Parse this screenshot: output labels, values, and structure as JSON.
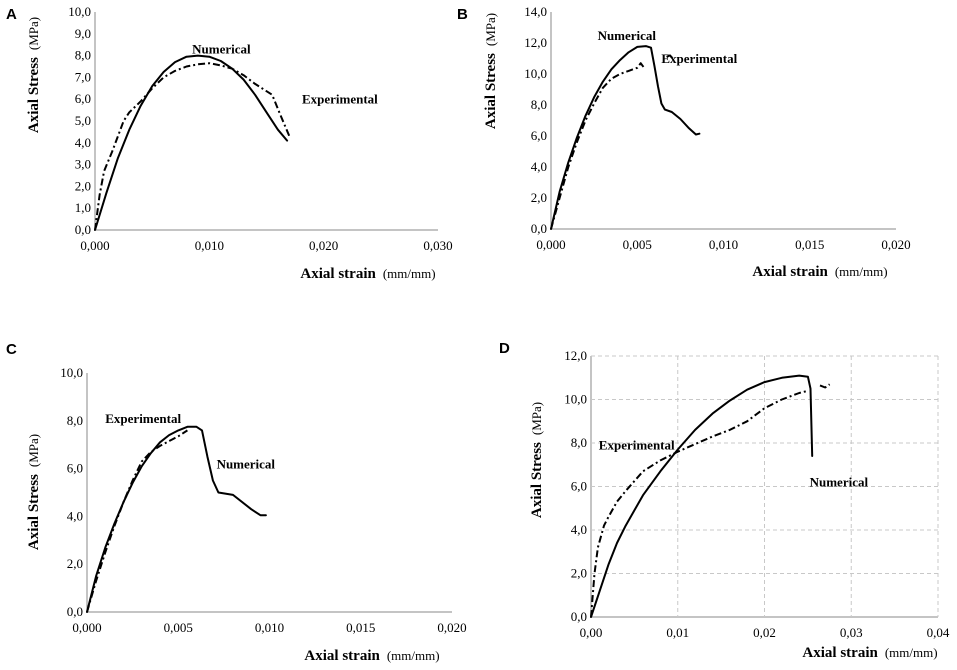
{
  "chart_data": [
    {
      "panel": "A",
      "type": "line",
      "xlabel": "Axial strain",
      "xlabel_unit": "(mm/mm)",
      "ylabel": "Axial Stress",
      "ylabel_unit": "(MPa)",
      "xlim": [
        0,
        0.03
      ],
      "ylim": [
        0,
        10
      ],
      "x_ticks": [
        0,
        0.01,
        0.02,
        0.03
      ],
      "x_tick_labels": [
        "0,000",
        "0,010",
        "0,020",
        "0,030"
      ],
      "y_ticks": [
        0,
        1,
        2,
        3,
        4,
        5,
        6,
        7,
        8,
        9,
        10
      ],
      "y_tick_labels": [
        "0,0",
        "1,0",
        "2,0",
        "3,0",
        "4,0",
        "5,0",
        "6,0",
        "7,0",
        "8,0",
        "9,0",
        "10,0"
      ],
      "grid": false,
      "series": [
        {
          "name": "Numerical",
          "style": "solid",
          "points": [
            [
              0,
              0
            ],
            [
              0.001,
              1.7
            ],
            [
              0.002,
              3.3
            ],
            [
              0.003,
              4.6
            ],
            [
              0.004,
              5.7
            ],
            [
              0.005,
              6.6
            ],
            [
              0.006,
              7.25
            ],
            [
              0.007,
              7.7
            ],
            [
              0.008,
              7.95
            ],
            [
              0.009,
              8.0
            ],
            [
              0.01,
              7.95
            ],
            [
              0.011,
              7.75
            ],
            [
              0.012,
              7.4
            ],
            [
              0.013,
              6.9
            ],
            [
              0.014,
              6.2
            ],
            [
              0.015,
              5.4
            ],
            [
              0.016,
              4.6
            ],
            [
              0.0168,
              4.1
            ]
          ]
        },
        {
          "name": "Experimental",
          "style": "dashdot",
          "points": [
            [
              0,
              0
            ],
            [
              0.0004,
              1.6
            ],
            [
              0.0008,
              2.7
            ],
            [
              0.0015,
              3.6
            ],
            [
              0.002,
              4.3
            ],
            [
              0.0025,
              5.0
            ],
            [
              0.003,
              5.4
            ],
            [
              0.004,
              5.9
            ],
            [
              0.005,
              6.5
            ],
            [
              0.006,
              7.0
            ],
            [
              0.007,
              7.3
            ],
            [
              0.008,
              7.5
            ],
            [
              0.009,
              7.6
            ],
            [
              0.01,
              7.65
            ],
            [
              0.011,
              7.55
            ],
            [
              0.012,
              7.4
            ],
            [
              0.013,
              7.1
            ],
            [
              0.014,
              6.7
            ],
            [
              0.0155,
              6.2
            ],
            [
              0.0162,
              5.3
            ],
            [
              0.017,
              4.3
            ]
          ]
        }
      ],
      "annotations": [
        {
          "text": "Numerical",
          "x": 0.0085,
          "y": 8.1
        },
        {
          "text": "Experimental",
          "x": 0.0181,
          "y": 5.8
        }
      ]
    },
    {
      "panel": "B",
      "type": "line",
      "xlabel": "Axial strain",
      "xlabel_unit": "(mm/mm)",
      "ylabel": "Axial Stress",
      "ylabel_unit": "(MPa)",
      "xlim": [
        0,
        0.02
      ],
      "ylim": [
        0,
        14
      ],
      "x_ticks": [
        0,
        0.005,
        0.01,
        0.015,
        0.02
      ],
      "x_tick_labels": [
        "0,000",
        "0,005",
        "0,010",
        "0,015",
        "0,020"
      ],
      "y_ticks": [
        0,
        2,
        4,
        6,
        8,
        10,
        12,
        14
      ],
      "y_tick_labels": [
        "0,0",
        "2,0",
        "4,0",
        "6,0",
        "8,0",
        "10,0",
        "12,0",
        "14,0"
      ],
      "grid": false,
      "series": [
        {
          "name": "Numerical",
          "style": "solid",
          "points": [
            [
              0,
              0
            ],
            [
              0.0005,
              2.4
            ],
            [
              0.001,
              4.3
            ],
            [
              0.0015,
              5.9
            ],
            [
              0.002,
              7.3
            ],
            [
              0.0025,
              8.5
            ],
            [
              0.003,
              9.5
            ],
            [
              0.0035,
              10.3
            ],
            [
              0.004,
              10.9
            ],
            [
              0.0045,
              11.4
            ],
            [
              0.005,
              11.75
            ],
            [
              0.0055,
              11.8
            ],
            [
              0.0058,
              11.7
            ],
            [
              0.006,
              10.5
            ],
            [
              0.0062,
              9.2
            ],
            [
              0.0064,
              8.1
            ],
            [
              0.0066,
              7.7
            ],
            [
              0.007,
              7.55
            ],
            [
              0.0075,
              7.1
            ],
            [
              0.008,
              6.5
            ],
            [
              0.0084,
              6.1
            ],
            [
              0.0086,
              6.15
            ]
          ]
        },
        {
          "name": "Experimental",
          "style": "dashdot",
          "points": [
            [
              0,
              0
            ],
            [
              0.0005,
              2.0
            ],
            [
              0.001,
              4.0
            ],
            [
              0.0015,
              5.6
            ],
            [
              0.002,
              7.0
            ],
            [
              0.0025,
              8.1
            ],
            [
              0.003,
              9.1
            ],
            [
              0.0035,
              9.7
            ],
            [
              0.004,
              10.0
            ],
            [
              0.0045,
              10.2
            ],
            [
              0.005,
              10.4
            ],
            [
              0.0052,
              10.7
            ],
            [
              0.0054,
              10.4
            ]
          ]
        },
        {
          "name": "Experimental",
          "style": "dashdot",
          "points": [
            [
              0.0067,
              11.1
            ],
            [
              0.0069,
              11.2
            ],
            [
              0.0071,
              10.95
            ]
          ]
        }
      ],
      "annotations": [
        {
          "text": "Numerical",
          "x": 0.0027,
          "y": 12.2
        },
        {
          "text": "Experimental",
          "x": 0.0064,
          "y": 10.7
        }
      ]
    },
    {
      "panel": "C",
      "type": "line",
      "xlabel": "Axial strain",
      "xlabel_unit": "(mm/mm)",
      "ylabel": "Axial Stress",
      "ylabel_unit": "(MPa)",
      "xlim": [
        0,
        0.02
      ],
      "ylim": [
        0,
        10
      ],
      "x_ticks": [
        0,
        0.005,
        0.01,
        0.015,
        0.02
      ],
      "x_tick_labels": [
        "0,000",
        "0,005",
        "0,010",
        "0,015",
        "0,020"
      ],
      "y_ticks": [
        0,
        2,
        4,
        6,
        8,
        10
      ],
      "y_tick_labels": [
        "0,0",
        "2,0",
        "4,0",
        "6,0",
        "8,0",
        "10,0"
      ],
      "grid": false,
      "series": [
        {
          "name": "Numerical",
          "style": "solid",
          "points": [
            [
              0,
              0
            ],
            [
              0.0005,
              1.5
            ],
            [
              0.001,
              2.7
            ],
            [
              0.0015,
              3.7
            ],
            [
              0.002,
              4.6
            ],
            [
              0.0025,
              5.4
            ],
            [
              0.003,
              6.1
            ],
            [
              0.0035,
              6.65
            ],
            [
              0.004,
              7.1
            ],
            [
              0.0045,
              7.4
            ],
            [
              0.005,
              7.6
            ],
            [
              0.0055,
              7.75
            ],
            [
              0.006,
              7.75
            ],
            [
              0.0063,
              7.6
            ],
            [
              0.0066,
              6.5
            ],
            [
              0.0069,
              5.5
            ],
            [
              0.0072,
              5.0
            ],
            [
              0.008,
              4.9
            ],
            [
              0.009,
              4.3
            ],
            [
              0.0095,
              4.05
            ],
            [
              0.0098,
              4.05
            ]
          ]
        },
        {
          "name": "Experimental",
          "style": "dashdot",
          "points": [
            [
              0,
              0
            ],
            [
              0.0005,
              1.3
            ],
            [
              0.001,
              2.5
            ],
            [
              0.0015,
              3.6
            ],
            [
              0.002,
              4.6
            ],
            [
              0.0025,
              5.5
            ],
            [
              0.003,
              6.3
            ],
            [
              0.0035,
              6.7
            ],
            [
              0.004,
              6.95
            ],
            [
              0.0045,
              7.15
            ],
            [
              0.005,
              7.35
            ],
            [
              0.0055,
              7.6
            ]
          ]
        }
      ],
      "annotations": [
        {
          "text": "Experimental",
          "x": 0.001,
          "y": 7.9
        },
        {
          "text": "Numerical",
          "x": 0.0071,
          "y": 6.0
        }
      ]
    },
    {
      "panel": "D",
      "type": "line",
      "xlabel": "Axial strain",
      "xlabel_unit": "(mm/mm)",
      "ylabel": "Axial Stress",
      "ylabel_unit": "(MPa)",
      "xlim": [
        0,
        0.04
      ],
      "ylim": [
        0,
        12
      ],
      "x_ticks": [
        0,
        0.01,
        0.02,
        0.03,
        0.04
      ],
      "x_tick_labels": [
        "0,00",
        "0,01",
        "0,02",
        "0,03",
        "0,04"
      ],
      "y_ticks": [
        0,
        2,
        4,
        6,
        8,
        10,
        12
      ],
      "y_tick_labels": [
        "0,0",
        "2,0",
        "4,0",
        "6,0",
        "8,0",
        "10,0",
        "12,0"
      ],
      "grid": true,
      "series": [
        {
          "name": "Numerical",
          "style": "solid",
          "points": [
            [
              0,
              0
            ],
            [
              0.001,
              1.2
            ],
            [
              0.002,
              2.4
            ],
            [
              0.003,
              3.4
            ],
            [
              0.004,
              4.2
            ],
            [
              0.006,
              5.6
            ],
            [
              0.008,
              6.7
            ],
            [
              0.01,
              7.7
            ],
            [
              0.012,
              8.6
            ],
            [
              0.014,
              9.35
            ],
            [
              0.016,
              9.95
            ],
            [
              0.018,
              10.45
            ],
            [
              0.02,
              10.8
            ],
            [
              0.022,
              11.0
            ],
            [
              0.024,
              11.1
            ],
            [
              0.025,
              11.05
            ],
            [
              0.0253,
              10.5
            ],
            [
              0.0255,
              7.4
            ]
          ]
        },
        {
          "name": "Experimental",
          "style": "dashdot",
          "points": [
            [
              0,
              0
            ],
            [
              0.0004,
              2.0
            ],
            [
              0.0008,
              3.2
            ],
            [
              0.0015,
              4.2
            ],
            [
              0.002,
              4.6
            ],
            [
              0.003,
              5.3
            ],
            [
              0.004,
              5.8
            ],
            [
              0.006,
              6.7
            ],
            [
              0.008,
              7.2
            ],
            [
              0.01,
              7.6
            ],
            [
              0.012,
              7.95
            ],
            [
              0.014,
              8.3
            ],
            [
              0.016,
              8.6
            ],
            [
              0.018,
              9.0
            ],
            [
              0.02,
              9.6
            ],
            [
              0.022,
              10.0
            ],
            [
              0.024,
              10.3
            ],
            [
              0.025,
              10.4
            ]
          ]
        },
        {
          "name": "Experimental",
          "style": "dashdot",
          "points": [
            [
              0.0264,
              10.65
            ],
            [
              0.027,
              10.55
            ],
            [
              0.0275,
              10.7
            ]
          ]
        }
      ],
      "annotations": [
        {
          "text": "Experimental",
          "x": 0.0009,
          "y": 7.7
        },
        {
          "text": "Numerical",
          "x": 0.0252,
          "y": 6.0
        }
      ]
    }
  ]
}
